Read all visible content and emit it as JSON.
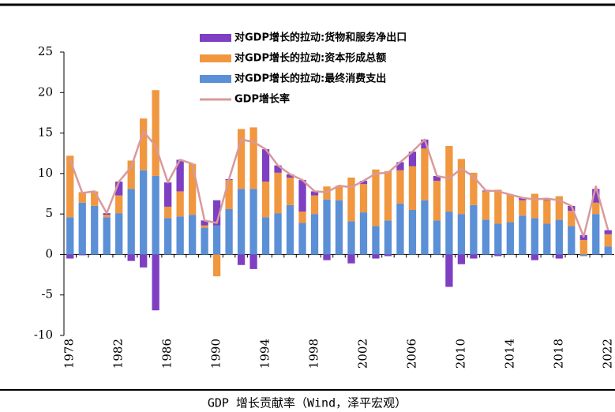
{
  "chart_data": {
    "type": "stacked_bar_line",
    "caption": "GDP 增长贡献率（Wind，泽平宏观）",
    "categories": [
      "1978",
      null,
      null,
      null,
      "1982",
      null,
      null,
      null,
      "1986",
      null,
      null,
      null,
      "1990",
      null,
      null,
      null,
      "1994",
      null,
      null,
      null,
      "1998",
      null,
      null,
      null,
      "2002",
      null,
      null,
      null,
      "2006",
      null,
      null,
      null,
      "2010",
      null,
      null,
      null,
      "2014",
      null,
      null,
      null,
      "2018",
      null,
      null,
      null,
      "2022"
    ],
    "ylim": [
      -10,
      25
    ],
    "yticks": [
      -10,
      -5,
      0,
      5,
      10,
      15,
      20,
      25
    ],
    "legend": "top",
    "series": [
      {
        "name": "对GDP增长的拉动:最终消费支出",
        "color": "#5b8fd6",
        "values": [
          4.6,
          6.4,
          6.0,
          4.6,
          5.1,
          8.1,
          10.4,
          9.7,
          4.5,
          4.7,
          4.9,
          3.3,
          3.6,
          5.6,
          8.1,
          8.1,
          4.6,
          5.1,
          6.1,
          3.9,
          5.0,
          6.8,
          6.7,
          4.1,
          5.2,
          3.5,
          4.2,
          6.3,
          5.5,
          6.7,
          4.2,
          5.3,
          5.0,
          6.1,
          4.3,
          3.8,
          4.0,
          4.8,
          4.5,
          3.8,
          4.3,
          3.5,
          -0.2,
          5.0,
          1.0
        ]
      },
      {
        "name": "对GDP增长的拉动:资本形成总额",
        "color": "#f0973f",
        "values": [
          7.6,
          1.3,
          1.8,
          0.3,
          2.2,
          3.5,
          6.4,
          10.6,
          1.4,
          3.1,
          6.3,
          0.3,
          -2.7,
          3.6,
          7.4,
          7.6,
          4.4,
          5.0,
          3.4,
          1.4,
          2.3,
          1.6,
          1.8,
          5.4,
          3.5,
          7.0,
          6.1,
          4.1,
          5.4,
          6.4,
          4.9,
          8.1,
          6.8,
          4.0,
          3.5,
          4.2,
          3.4,
          1.9,
          3.0,
          2.9,
          2.9,
          1.9,
          1.8,
          1.4,
          1.5
        ]
      },
      {
        "name": "对GDP增长的拉动:货物和服务净出口",
        "color": "#7e3fc2",
        "values": [
          -0.5,
          -0.1,
          0.0,
          0.2,
          1.7,
          -0.8,
          -1.6,
          -6.9,
          3.0,
          3.9,
          0.0,
          0.6,
          3.1,
          0.1,
          -1.3,
          -1.8,
          4.0,
          0.9,
          0.4,
          3.9,
          0.5,
          -0.7,
          0.0,
          -1.1,
          0.4,
          -0.5,
          -0.2,
          1.0,
          1.8,
          1.1,
          0.6,
          -4.0,
          -1.2,
          -0.5,
          0.1,
          -0.2,
          0.0,
          0.3,
          -0.7,
          0.2,
          -0.5,
          0.6,
          0.6,
          1.7,
          0.5
        ]
      },
      {
        "name": "GDP增长率",
        "color": "#d9999b",
        "kind": "line",
        "values": [
          11.7,
          7.6,
          7.8,
          5.1,
          9.0,
          10.8,
          15.2,
          13.4,
          8.9,
          11.7,
          11.2,
          4.2,
          3.9,
          9.3,
          14.2,
          13.9,
          13.0,
          11.0,
          9.9,
          9.2,
          7.8,
          7.7,
          8.5,
          8.3,
          9.1,
          10.0,
          10.1,
          11.4,
          12.7,
          14.2,
          9.7,
          9.4,
          10.6,
          9.6,
          7.9,
          7.8,
          7.4,
          7.0,
          6.8,
          6.9,
          6.7,
          6.0,
          2.2,
          8.4,
          3.0
        ]
      }
    ]
  }
}
